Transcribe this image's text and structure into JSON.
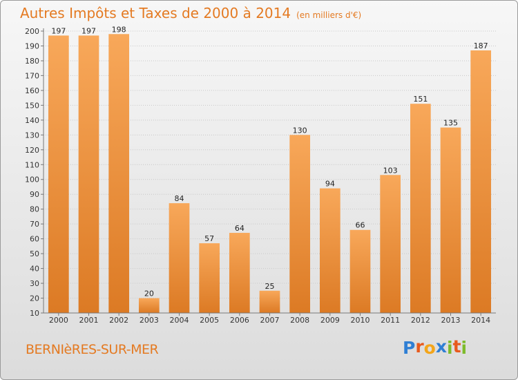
{
  "title": "Autres Impôts et Taxes de 2000 à 2014",
  "subtitle": "(en milliers d'€)",
  "commune": "BERNIèRES-SUR-MER",
  "logo": {
    "text": "Proxiti",
    "letters": [
      "P",
      "r",
      "o",
      "x",
      "i",
      "t",
      "i"
    ],
    "colors": [
      "#2f7fd4",
      "#e85a1d",
      "#f3a51a",
      "#2f7fd4",
      "#7dbb2b",
      "#e85a1d",
      "#7dbb2b"
    ]
  },
  "colors": {
    "accent": "#e47a22",
    "bar_light": "#f8a85a",
    "bar_dark": "#dc7a24"
  },
  "chart_data": {
    "type": "bar",
    "categories": [
      "2000",
      "2001",
      "2002",
      "2003",
      "2004",
      "2005",
      "2006",
      "2007",
      "2008",
      "2009",
      "2010",
      "2011",
      "2012",
      "2013",
      "2014"
    ],
    "values": [
      197,
      197,
      198,
      20,
      84,
      57,
      64,
      25,
      130,
      94,
      66,
      103,
      151,
      135,
      187
    ],
    "ylim": [
      10,
      200
    ],
    "yticks": [
      10,
      20,
      30,
      40,
      50,
      60,
      70,
      80,
      90,
      100,
      110,
      120,
      130,
      140,
      150,
      160,
      170,
      180,
      190,
      200
    ],
    "grid": true
  }
}
